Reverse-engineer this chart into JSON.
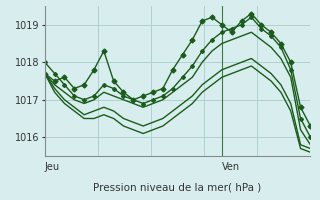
{
  "background_color": "#d8eeee",
  "grid_color": "#b0d0d0",
  "line_color": "#1a5c1a",
  "title": "Pression niveau de la mer( hPa )",
  "xlabel_jeu": "Jeu",
  "xlabel_ven": "Ven",
  "ylim": [
    1015.5,
    1019.5
  ],
  "yticks": [
    1016,
    1017,
    1018,
    1019
  ],
  "series": [
    [
      1017.7,
      1017.5,
      1017.6,
      1017.3,
      1017.4,
      1017.8,
      1018.3,
      1017.5,
      1017.2,
      1017.0,
      1017.1,
      1017.2,
      1017.3,
      1017.8,
      1018.2,
      1018.6,
      1019.1,
      1019.2,
      1019.0,
      1018.8,
      1019.1,
      1019.3,
      1019.0,
      1018.8,
      1018.5,
      1018.0,
      1016.8,
      1016.3
    ],
    [
      1017.7,
      1017.4,
      1017.2,
      1017.0,
      1016.9,
      1017.0,
      1017.2,
      1017.1,
      1017.0,
      1016.9,
      1016.8,
      1016.9,
      1017.0,
      1017.2,
      1017.4,
      1017.6,
      1018.0,
      1018.3,
      1018.5,
      1018.6,
      1018.7,
      1018.8,
      1018.6,
      1018.4,
      1018.1,
      1017.6,
      1016.2,
      1015.8
    ],
    [
      1017.7,
      1017.3,
      1017.0,
      1016.8,
      1016.6,
      1016.7,
      1016.8,
      1016.7,
      1016.5,
      1016.4,
      1016.3,
      1016.4,
      1016.5,
      1016.7,
      1016.9,
      1017.1,
      1017.4,
      1017.6,
      1017.8,
      1017.9,
      1018.0,
      1018.1,
      1017.9,
      1017.7,
      1017.4,
      1016.9,
      1015.8,
      1015.7
    ],
    [
      1017.7,
      1017.2,
      1016.9,
      1016.7,
      1016.5,
      1016.5,
      1016.6,
      1016.5,
      1016.3,
      1016.2,
      1016.1,
      1016.2,
      1016.3,
      1016.5,
      1016.7,
      1016.9,
      1017.2,
      1017.4,
      1017.6,
      1017.7,
      1017.8,
      1017.9,
      1017.7,
      1017.5,
      1017.2,
      1016.7,
      1015.7,
      1015.6
    ],
    [
      1018.0,
      1017.7,
      1017.4,
      1017.1,
      1017.0,
      1017.1,
      1017.4,
      1017.3,
      1017.1,
      1017.0,
      1016.9,
      1017.0,
      1017.1,
      1017.3,
      1017.6,
      1017.9,
      1018.3,
      1018.6,
      1018.8,
      1018.9,
      1019.0,
      1019.2,
      1018.9,
      1018.7,
      1018.4,
      1017.8,
      1016.5,
      1016.0
    ]
  ],
  "ven_index": 18,
  "n_points": 28
}
